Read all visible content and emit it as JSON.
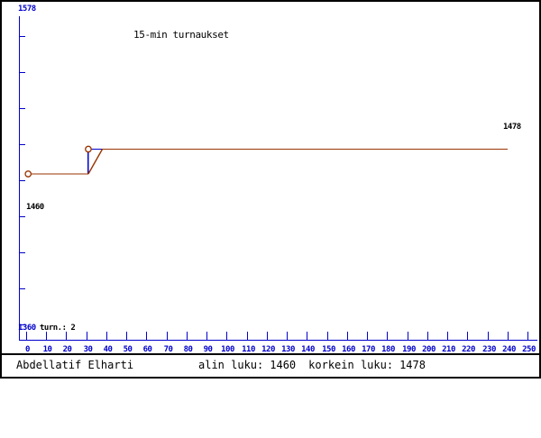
{
  "statusbar": {
    "player_name": "Abdellatif Elharti",
    "min_label": "alin luku:",
    "min_value": "1460",
    "max_label": "korkein luku:",
    "max_value": "1478"
  },
  "chart_data": {
    "type": "line",
    "title": "15-min turnaukset",
    "xlabel": "",
    "ylabel": "",
    "x_range": [
      0,
      250
    ],
    "x_ticks": [
      0,
      10,
      20,
      30,
      40,
      50,
      60,
      70,
      80,
      90,
      100,
      110,
      120,
      130,
      140,
      150,
      160,
      170,
      180,
      190,
      200,
      210,
      220,
      230,
      240,
      250
    ],
    "y_view": [
      1360,
      1578
    ],
    "y_axis_top_label": "1578",
    "y_axis_bottom_label": "1360",
    "tournaments_label": "turn.: 2",
    "tournaments_count": 2,
    "min_rating_label": "1460",
    "max_rating_label": "1478",
    "min_rating": 1460,
    "max_rating": 1478,
    "series": [
      {
        "name": "rating",
        "points": [
          [
            1,
            1460
          ],
          [
            31,
            1460
          ],
          [
            38,
            1478
          ],
          [
            240,
            1478
          ]
        ]
      }
    ],
    "tournament_markers": [
      [
        1,
        1460
      ],
      [
        31,
        1478
      ]
    ],
    "step": {
      "x_from": 31,
      "x_to": 38,
      "y_from": 1460,
      "y_to": 1478
    },
    "colors": {
      "axis": "#0000CC",
      "line": "#993300",
      "text": "#000000",
      "background": "#FFFFFF"
    },
    "legend": null,
    "grid": false
  }
}
